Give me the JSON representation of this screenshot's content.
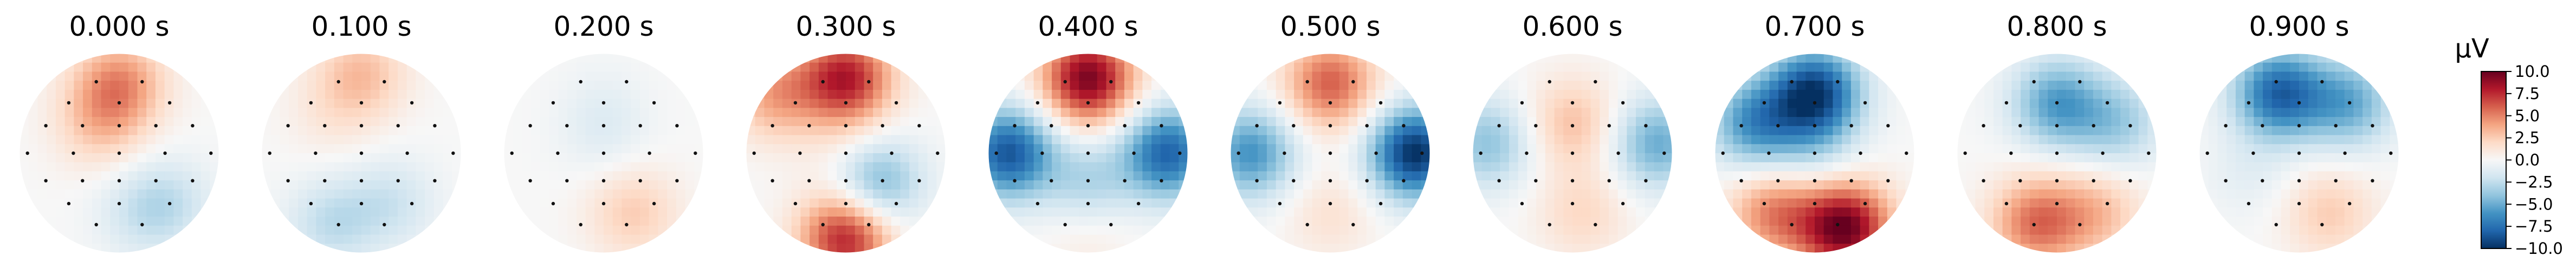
{
  "chart_data": {
    "type": "heatmap",
    "description_shown": "topographic scalp maps",
    "colormap": "RdBu_r",
    "titles": [
      "0.000 s",
      "0.100 s",
      "0.200 s",
      "0.300 s",
      "0.400 s",
      "0.500 s",
      "0.600 s",
      "0.700 s",
      "0.800 s",
      "0.900 s"
    ],
    "colorbar": {
      "unit": "µV",
      "vmin": -10.0,
      "vmax": 10.0,
      "ticks": [
        10.0,
        7.5,
        5.0,
        2.5,
        0.0,
        -2.5,
        -5.0,
        -7.5,
        -10.0
      ],
      "tick_labels": [
        "10.0",
        "7.5",
        "5.0",
        "2.5",
        "0.0",
        "−2.5",
        "−5.0",
        "−7.5",
        "−10.0"
      ]
    },
    "maps": [
      {
        "time": "0.000 s",
        "field": [
          [
            0.0,
            0.7,
            4.5
          ],
          [
            -0.2,
            0.3,
            2.5
          ],
          [
            0.5,
            -0.5,
            -2.0
          ],
          [
            0.2,
            -0.6,
            -1.5
          ]
        ]
      },
      {
        "time": "0.100 s",
        "field": [
          [
            0.0,
            0.8,
            3.0
          ],
          [
            -0.3,
            0.4,
            1.0
          ],
          [
            0.3,
            -0.5,
            -2.0
          ],
          [
            -0.3,
            -0.7,
            -2.5
          ]
        ]
      },
      {
        "time": "0.200 s",
        "field": [
          [
            0.0,
            0.5,
            -0.5
          ],
          [
            0.0,
            0.2,
            -1.0
          ],
          [
            0.3,
            -0.6,
            2.5
          ]
        ]
      },
      {
        "time": "0.300 s",
        "field": [
          [
            0.0,
            0.75,
            8.0
          ],
          [
            -0.7,
            0.6,
            4.0
          ],
          [
            0.3,
            -0.3,
            -5.0
          ],
          [
            0.0,
            -0.85,
            8.0
          ],
          [
            0.0,
            0.0,
            1.0
          ]
        ]
      },
      {
        "time": "0.400 s",
        "field": [
          [
            0.0,
            0.75,
            9.5
          ],
          [
            -0.8,
            0.0,
            -8.5
          ],
          [
            0.8,
            0.0,
            -8.0
          ],
          [
            0.0,
            -0.3,
            -3.0
          ],
          [
            0.0,
            -0.8,
            1.0
          ]
        ]
      },
      {
        "time": "0.500 s",
        "field": [
          [
            0.0,
            0.7,
            6.0
          ],
          [
            -0.8,
            0.0,
            -6.0
          ],
          [
            0.85,
            0.0,
            -10.0
          ],
          [
            0.0,
            -0.6,
            1.5
          ]
        ]
      },
      {
        "time": "0.600 s",
        "field": [
          [
            0.0,
            0.3,
            3.0
          ],
          [
            -0.85,
            0.1,
            -4.0
          ],
          [
            0.85,
            0.1,
            -5.0
          ],
          [
            0.1,
            -0.6,
            2.0
          ]
        ]
      },
      {
        "time": "0.700 s",
        "field": [
          [
            0.0,
            0.6,
            -9.5
          ],
          [
            -0.6,
            0.3,
            -6.0
          ],
          [
            0.3,
            -0.75,
            10.0
          ],
          [
            -0.4,
            -0.6,
            5.0
          ],
          [
            0.0,
            0.0,
            -2.0
          ]
        ]
      },
      {
        "time": "0.800 s",
        "field": [
          [
            0.0,
            0.5,
            -5.5
          ],
          [
            0.6,
            0.3,
            -3.5
          ],
          [
            -0.2,
            -0.7,
            5.5
          ],
          [
            0.4,
            -0.6,
            3.0
          ]
        ]
      },
      {
        "time": "0.900 s",
        "field": [
          [
            -0.2,
            0.6,
            -8.0
          ],
          [
            0.5,
            0.5,
            -5.0
          ],
          [
            0.3,
            -0.6,
            2.5
          ],
          [
            -0.5,
            -0.2,
            -1.0
          ]
        ]
      }
    ]
  }
}
